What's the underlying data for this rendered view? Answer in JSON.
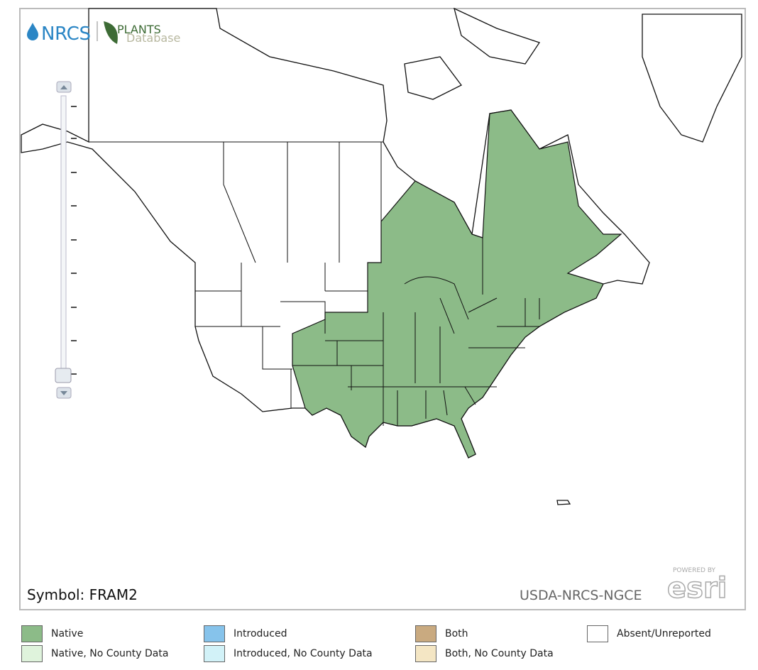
{
  "header": {
    "agency": "NRCS",
    "database_title": "PLANTS",
    "database_subtitle": "Database"
  },
  "map": {
    "symbol": "Symbol: FRAM2",
    "credit": "USDA-NRCS-NGCE",
    "powered_by": "POWERED BY",
    "esri": "esri",
    "native_color": "#8cbb88"
  },
  "legend": [
    {
      "label": "Native",
      "color": "#8cbb88"
    },
    {
      "label": "Introduced",
      "color": "#86c3eb"
    },
    {
      "label": "Both",
      "color": "#c9aa80"
    },
    {
      "label": "Absent/Unreported",
      "color": "#ffffff"
    },
    {
      "label": "Native, No County Data",
      "color": "#dff3dc"
    },
    {
      "label": "Introduced, No County Data",
      "color": "#d2f2f8"
    },
    {
      "label": "Both, No County Data",
      "color": "#f4e6c4"
    }
  ]
}
